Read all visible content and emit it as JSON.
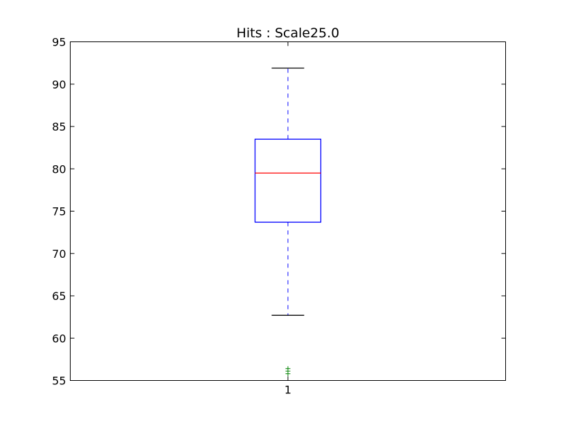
{
  "chart_data": {
    "type": "box",
    "title": "Hits : Scale25.0",
    "xlabel": "",
    "ylabel": "",
    "ylim": [
      55,
      95
    ],
    "yticks": [
      "55",
      "60",
      "65",
      "70",
      "75",
      "80",
      "85",
      "90",
      "95"
    ],
    "categories": [
      "1"
    ],
    "boxes": [
      {
        "category": "1",
        "whisker_low": 62.7,
        "q1": 73.7,
        "median": 79.5,
        "q3": 83.5,
        "whisker_high": 91.9,
        "outliers": [
          55.8,
          56.1,
          56.4
        ]
      }
    ],
    "grid": false,
    "legend": "none",
    "colors": {
      "box": "#0000ff",
      "median": "#ff0000",
      "whisker_cap": "#000000",
      "outlier": "#008000",
      "axes": "#000000"
    }
  }
}
